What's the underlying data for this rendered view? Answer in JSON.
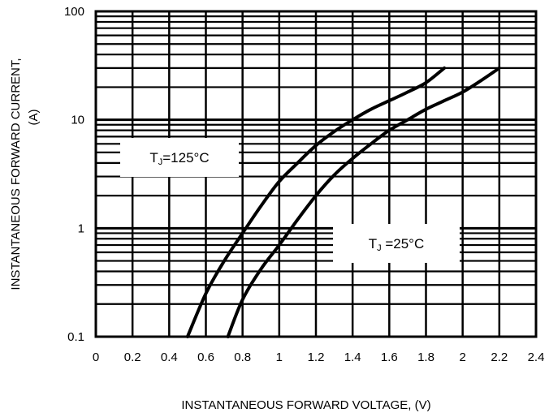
{
  "chart_data": {
    "type": "line",
    "title": "",
    "xlabel": "INSTANTANEOUS FORWARD VOLTAGE, (V)",
    "ylabel_line1": "INSTANTANEOUS FORWARD CURRENT,",
    "ylabel_line2": "(A)",
    "xlim": [
      0,
      2.4
    ],
    "ylim": [
      0.1,
      100
    ],
    "yscale": "log",
    "grid": true,
    "x_ticks": [
      "0",
      "0.2",
      "0.4",
      "0.6",
      "0.8",
      "1",
      "1.2",
      "1.4",
      "1.6",
      "1.8",
      "2",
      "2.2",
      "2.4"
    ],
    "y_ticks": [
      "0.1",
      "1",
      "10",
      "100"
    ],
    "series": [
      {
        "name": "TJ=125°C",
        "x": [
          0.5,
          0.6,
          0.7,
          0.8,
          0.9,
          1.0,
          1.1,
          1.2,
          1.3,
          1.4,
          1.5,
          1.6,
          1.7,
          1.8,
          1.9
        ],
        "y": [
          0.1,
          0.25,
          0.5,
          0.9,
          1.6,
          2.7,
          4.0,
          5.8,
          7.8,
          10.0,
          12.5,
          15.0,
          18.0,
          22.0,
          30.0
        ]
      },
      {
        "name": "TJ =25°C",
        "x": [
          0.72,
          0.8,
          0.9,
          1.0,
          1.1,
          1.2,
          1.3,
          1.4,
          1.5,
          1.6,
          1.7,
          1.8,
          1.9,
          2.0,
          2.1,
          2.2
        ],
        "y": [
          0.1,
          0.22,
          0.42,
          0.7,
          1.2,
          2.0,
          3.1,
          4.4,
          6.0,
          8.0,
          10.0,
          12.5,
          15.0,
          18.0,
          23.0,
          30.0
        ]
      }
    ],
    "annotations": [
      {
        "main": "T",
        "sub": "J",
        "rest": "=125°C"
      },
      {
        "main": "T",
        "sub": "J",
        "rest": " =25°C"
      }
    ]
  }
}
